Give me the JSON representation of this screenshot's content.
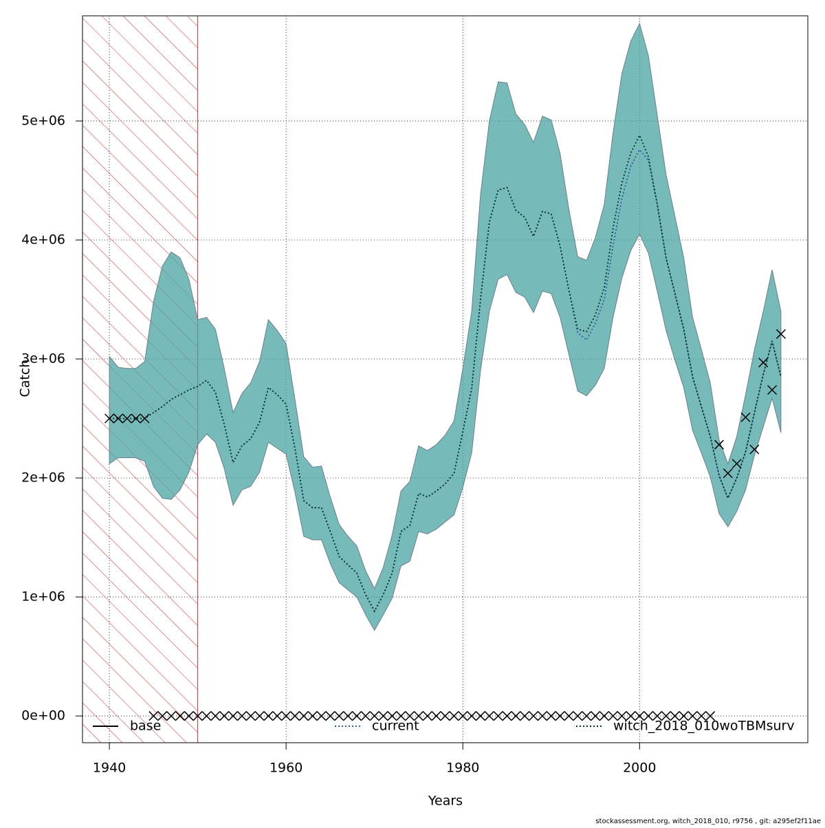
{
  "chart_data": {
    "type": "line",
    "x_label": "Years",
    "y_label": "Catch",
    "footer": "stockassessment.org, witch_2018_010, r9756 , git: a295ef2f11ae",
    "xlim": [
      1936.96,
      2019.04
    ],
    "ylim": [
      -225000.0,
      5884000.0
    ],
    "xticks": [
      1940,
      1960,
      1980,
      2000
    ],
    "yticks": [
      {
        "value": 0,
        "label": "0e+00"
      },
      {
        "value": 1000000.0,
        "label": "1e+06"
      },
      {
        "value": 2000000.0,
        "label": "2e+06"
      },
      {
        "value": 3000000.0,
        "label": "3e+06"
      },
      {
        "value": 4000000.0,
        "label": "4e+06"
      },
      {
        "value": 5000000.0,
        "label": "5e+06"
      }
    ],
    "grid": true,
    "hatched_until": 1950,
    "hatch_color": "#e8202a",
    "band_color": "#4aa3a3",
    "x": [
      1940,
      1941,
      1942,
      1943,
      1944,
      1945,
      1946,
      1947,
      1948,
      1949,
      1950,
      1951,
      1952,
      1953,
      1954,
      1955,
      1956,
      1957,
      1958,
      1959,
      1960,
      1961,
      1962,
      1963,
      1964,
      1965,
      1966,
      1967,
      1968,
      1969,
      1970,
      1971,
      1972,
      1973,
      1974,
      1975,
      1976,
      1977,
      1978,
      1979,
      1980,
      1981,
      1982,
      1983,
      1984,
      1985,
      1986,
      1987,
      1988,
      1989,
      1990,
      1991,
      1992,
      1993,
      1994,
      1995,
      1996,
      1997,
      1998,
      1999,
      2000,
      2001,
      2002,
      2003,
      2004,
      2005,
      2006,
      2007,
      2008,
      2009,
      2010,
      2011,
      2012,
      2013,
      2014,
      2015,
      2016
    ],
    "series": [
      {
        "name": "base",
        "color": "#000000",
        "style": "solid"
      },
      {
        "name": "current",
        "color": "#2a5aa0",
        "style": "dotted",
        "values": [
          2500000.0,
          2500000.0,
          2500000.0,
          2500000.0,
          2500000.0,
          2550000.0,
          2600000.0,
          2660000.0,
          2700000.0,
          2740000.0,
          2770000.0,
          2820000.0,
          2720000.0,
          2450000.0,
          2130000.0,
          2270000.0,
          2330000.0,
          2470000.0,
          2760000.0,
          2700000.0,
          2620000.0,
          2250000.0,
          1810000.0,
          1750000.0,
          1750000.0,
          1550000.0,
          1340000.0,
          1270000.0,
          1200000.0,
          1020000.0,
          880000.0,
          1020000.0,
          1200000.0,
          1550000.0,
          1600000.0,
          1870000.0,
          1840000.0,
          1890000.0,
          1950000.0,
          2040000.0,
          2390000.0,
          2750000.0,
          3500000.0,
          4150000.0,
          4420000.0,
          4440000.0,
          4250000.0,
          4190000.0,
          4030000.0,
          4240000.0,
          4220000.0,
          3950000.0,
          3580000.0,
          3220000.0,
          3160000.0,
          3300000.0,
          3500000.0,
          3950000.0,
          4350000.0,
          4620000.0,
          4760000.0,
          4670000.0,
          4300000.0,
          3850000.0,
          3550000.0,
          3250000.0,
          2850000.0,
          2600000.0,
          2350000.0,
          2020000.0,
          1830000.0,
          2000000.0,
          2220000.0,
          2550000.0,
          2870000.0,
          3150000.0,
          2850000.0
        ]
      },
      {
        "name": "witch_2018_010woTBMsurv",
        "color": "#00331f",
        "style": "dotted",
        "values": [
          2500000.0,
          2500000.0,
          2500000.0,
          2500000.0,
          2500000.0,
          2550000.0,
          2600000.0,
          2660000.0,
          2700000.0,
          2740000.0,
          2770000.0,
          2820000.0,
          2720000.0,
          2450000.0,
          2130000.0,
          2270000.0,
          2330000.0,
          2470000.0,
          2760000.0,
          2700000.0,
          2620000.0,
          2250000.0,
          1810000.0,
          1750000.0,
          1750000.0,
          1550000.0,
          1340000.0,
          1270000.0,
          1200000.0,
          1020000.0,
          880000.0,
          1020000.0,
          1200000.0,
          1550000.0,
          1600000.0,
          1870000.0,
          1840000.0,
          1890000.0,
          1950000.0,
          2040000.0,
          2390000.0,
          2750000.0,
          3500000.0,
          4150000.0,
          4420000.0,
          4440000.0,
          4250000.0,
          4190000.0,
          4030000.0,
          4240000.0,
          4220000.0,
          3950000.0,
          3580000.0,
          3250000.0,
          3230000.0,
          3370000.0,
          3600000.0,
          4100000.0,
          4480000.0,
          4730000.0,
          4880000.0,
          4700000.0,
          4300000.0,
          3850000.0,
          3550000.0,
          3250000.0,
          2850000.0,
          2600000.0,
          2350000.0,
          2020000.0,
          1830000.0,
          2000000.0,
          2220000.0,
          2550000.0,
          2870000.0,
          3150000.0,
          2850000.0
        ],
        "lower": [
          2120000.0,
          2170000.0,
          2170000.0,
          2170000.0,
          2140000.0,
          1930000.0,
          1830000.0,
          1820000.0,
          1900000.0,
          2050000.0,
          2280000.0,
          2370000.0,
          2300000.0,
          2080000.0,
          1770000.0,
          1900000.0,
          1930000.0,
          2050000.0,
          2300000.0,
          2250000.0,
          2200000.0,
          1880000.0,
          1510000.0,
          1480000.0,
          1480000.0,
          1280000.0,
          1120000.0,
          1060000.0,
          1000000.0,
          850000.0,
          720000.0,
          850000.0,
          990000.0,
          1260000.0,
          1300000.0,
          1550000.0,
          1530000.0,
          1570000.0,
          1630000.0,
          1690000.0,
          1920000.0,
          2210000.0,
          2900000.0,
          3400000.0,
          3670000.0,
          3710000.0,
          3560000.0,
          3520000.0,
          3390000.0,
          3570000.0,
          3550000.0,
          3350000.0,
          3040000.0,
          2730000.0,
          2690000.0,
          2780000.0,
          2920000.0,
          3350000.0,
          3680000.0,
          3910000.0,
          4050000.0,
          3890000.0,
          3570000.0,
          3240000.0,
          2990000.0,
          2760000.0,
          2400000.0,
          2210000.0,
          2010000.0,
          1700000.0,
          1590000.0,
          1720000.0,
          1900000.0,
          2190000.0,
          2430000.0,
          2670000.0,
          2380000.0
        ],
        "upper": [
          3020000.0,
          2930000.0,
          2920000.0,
          2920000.0,
          2980000.0,
          3480000.0,
          3780000.0,
          3900000.0,
          3850000.0,
          3670000.0,
          3330000.0,
          3350000.0,
          3250000.0,
          2920000.0,
          2550000.0,
          2710000.0,
          2800000.0,
          2980000.0,
          3330000.0,
          3240000.0,
          3130000.0,
          2660000.0,
          2180000.0,
          2090000.0,
          2100000.0,
          1840000.0,
          1610000.0,
          1510000.0,
          1430000.0,
          1220000.0,
          1070000.0,
          1250000.0,
          1520000.0,
          1890000.0,
          1970000.0,
          2270000.0,
          2230000.0,
          2280000.0,
          2360000.0,
          2480000.0,
          2920000.0,
          3400000.0,
          4380000.0,
          5000000.0,
          5330000.0,
          5320000.0,
          5060000.0,
          4970000.0,
          4820000.0,
          5040000.0,
          5010000.0,
          4730000.0,
          4260000.0,
          3860000.0,
          3830000.0,
          4020000.0,
          4300000.0,
          4900000.0,
          5400000.0,
          5670000.0,
          5820000.0,
          5550000.0,
          5050000.0,
          4550000.0,
          4200000.0,
          3850000.0,
          3350000.0,
          3080000.0,
          2800000.0,
          2320000.0,
          2120000.0,
          2350000.0,
          2700000.0,
          3080000.0,
          3400000.0,
          3750000.0,
          3400000.0
        ]
      }
    ],
    "observations": {
      "color": "#000000",
      "values": [
        2500000.0,
        2500000.0,
        2500000.0,
        2500000.0,
        2500000.0,
        0,
        0,
        0,
        0,
        0,
        0,
        0,
        0,
        0,
        0,
        0,
        0,
        0,
        0,
        0,
        0,
        0,
        0,
        0,
        0,
        0,
        0,
        0,
        0,
        0,
        0,
        0,
        0,
        0,
        0,
        0,
        0,
        0,
        0,
        0,
        0,
        0,
        0,
        0,
        0,
        0,
        0,
        0,
        0,
        0,
        0,
        0,
        0,
        0,
        0,
        0,
        0,
        0,
        0,
        0,
        0,
        0,
        0,
        0,
        0,
        0,
        0,
        0,
        0,
        2280000.0,
        2040000.0,
        2120000.0,
        2510000.0,
        2240000.0,
        2970000.0,
        2740000.0,
        3210000.0
      ]
    }
  }
}
